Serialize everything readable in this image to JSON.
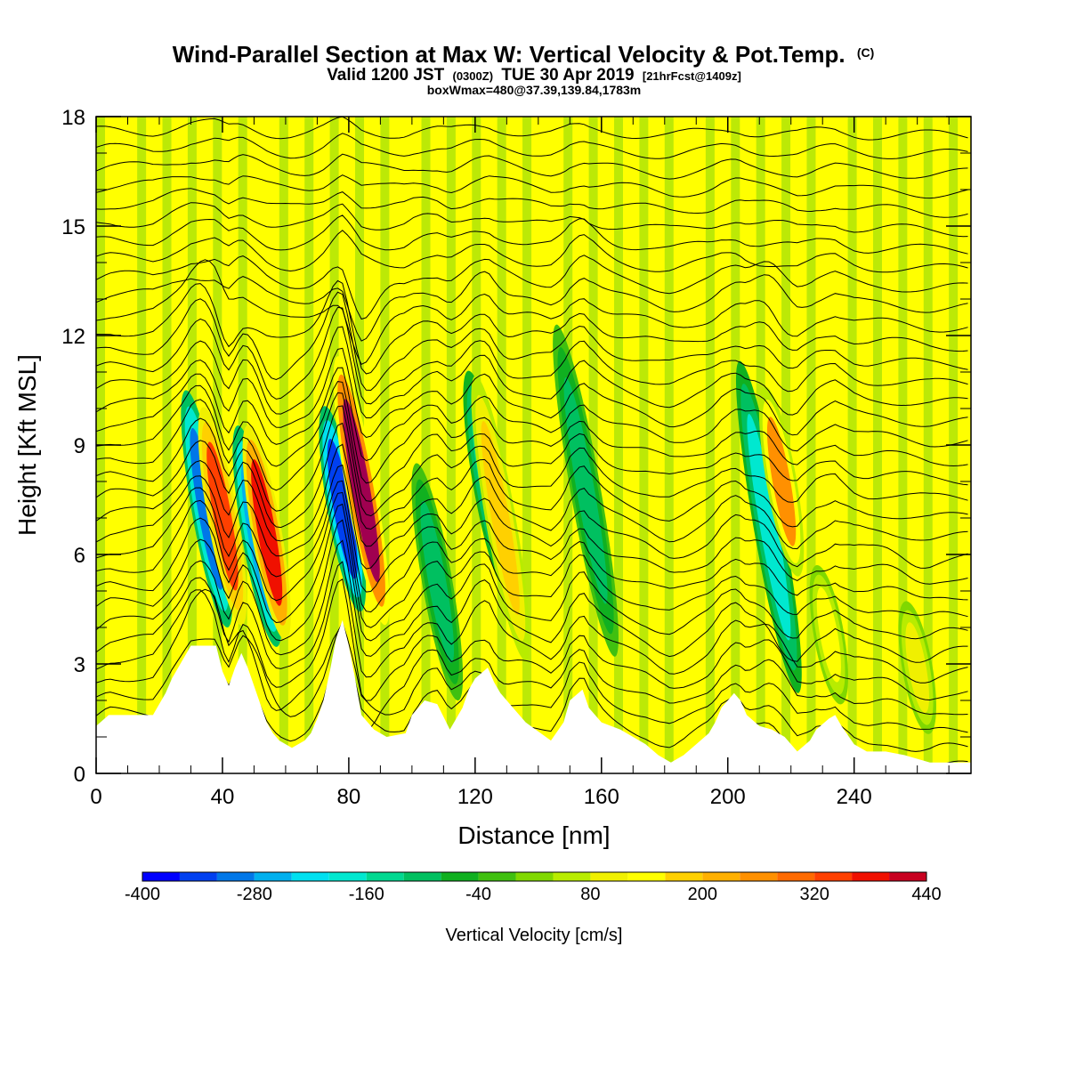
{
  "chart_data": {
    "type": "heatmap",
    "title": "Wind-Parallel Section at Max W: Vertical Velocity & Pot.Temp.",
    "title_suffix": "(C)",
    "subtitle": {
      "part1": "Valid 1200 JST",
      "part2": "(0300Z)",
      "part3": "TUE 30 Apr 2019",
      "part4": "[21hrFcst@1409z]"
    },
    "subtitle2": "boxWmax=480@37.39,139.84,1783m",
    "xlabel": "Distance [nm]",
    "ylabel": "Height [Kft MSL]",
    "xlim": [
      0,
      277
    ],
    "ylim": [
      0,
      18
    ],
    "x_ticks": [
      "0",
      "40",
      "80",
      "120",
      "160",
      "200",
      "240"
    ],
    "y_ticks": [
      "0",
      "3",
      "6",
      "9",
      "12",
      "15",
      "18"
    ],
    "colorbar": {
      "label": "Vertical Velocity [cm/s]",
      "range": [
        -400,
        440
      ],
      "step": 40,
      "tick_labels": [
        "-400",
        "-280",
        "-160",
        "-40",
        "80",
        "200",
        "320",
        "440"
      ],
      "colors": [
        "#0000ff",
        "#0040f0",
        "#0077e8",
        "#00b0ee",
        "#00e0f0",
        "#00e8d0",
        "#00d890",
        "#00c060",
        "#10b020",
        "#40c010",
        "#80d800",
        "#b8ec00",
        "#f0f000",
        "#ffff00",
        "#ffd000",
        "#ffb000",
        "#ff9000",
        "#ff6a00",
        "#ff4000",
        "#f01000",
        "#c80020",
        "#a00050",
        "#780080",
        "#500090",
        "#400090"
      ]
    },
    "terrain_height_kft": [
      [
        0,
        1.3
      ],
      [
        4,
        1.6
      ],
      [
        12,
        1.6
      ],
      [
        18,
        1.6
      ],
      [
        22,
        2.2
      ],
      [
        24,
        2.6
      ],
      [
        28,
        3.2
      ],
      [
        30,
        3.5
      ],
      [
        38,
        3.5
      ],
      [
        40,
        2.8
      ],
      [
        42,
        2.4
      ],
      [
        44,
        2.9
      ],
      [
        46,
        3.3
      ],
      [
        48,
        2.9
      ],
      [
        50,
        2.4
      ],
      [
        52,
        1.9
      ],
      [
        54,
        1.4
      ],
      [
        56,
        1.1
      ],
      [
        58,
        0.9
      ],
      [
        62,
        0.7
      ],
      [
        66,
        0.9
      ],
      [
        68,
        1.1
      ],
      [
        70,
        1.5
      ],
      [
        72,
        2.0
      ],
      [
        74,
        2.8
      ],
      [
        76,
        3.7
      ],
      [
        78,
        4.2
      ],
      [
        80,
        3.5
      ],
      [
        82,
        2.6
      ],
      [
        84,
        1.6
      ],
      [
        86,
        1.4
      ],
      [
        88,
        1.2
      ],
      [
        92,
        1.0
      ],
      [
        98,
        1.1
      ],
      [
        100,
        1.6
      ],
      [
        104,
        2.0
      ],
      [
        108,
        1.9
      ],
      [
        112,
        1.2
      ],
      [
        116,
        1.8
      ],
      [
        118,
        2.3
      ],
      [
        120,
        2.6
      ],
      [
        124,
        2.9
      ],
      [
        126,
        2.5
      ],
      [
        128,
        2.2
      ],
      [
        132,
        1.8
      ],
      [
        136,
        1.4
      ],
      [
        144,
        0.9
      ],
      [
        148,
        1.4
      ],
      [
        150,
        2.0
      ],
      [
        154,
        2.3
      ],
      [
        156,
        1.8
      ],
      [
        160,
        1.4
      ],
      [
        166,
        1.2
      ],
      [
        170,
        1.0
      ],
      [
        174,
        0.8
      ],
      [
        178,
        0.5
      ],
      [
        182,
        0.3
      ],
      [
        186,
        0.5
      ],
      [
        190,
        0.8
      ],
      [
        194,
        1.1
      ],
      [
        196,
        1.4
      ],
      [
        198,
        1.8
      ],
      [
        202,
        2.2
      ],
      [
        204,
        2.0
      ],
      [
        206,
        1.6
      ],
      [
        210,
        1.3
      ],
      [
        214,
        1.2
      ],
      [
        218,
        1.0
      ],
      [
        222,
        0.6
      ],
      [
        226,
        0.9
      ],
      [
        228,
        1.2
      ],
      [
        232,
        1.5
      ],
      [
        234,
        1.6
      ],
      [
        236,
        1.3
      ],
      [
        240,
        0.8
      ],
      [
        244,
        0.6
      ],
      [
        250,
        0.6
      ],
      [
        256,
        0.5
      ],
      [
        260,
        0.4
      ],
      [
        264,
        0.3
      ],
      [
        277,
        0.3
      ]
    ],
    "vertical_velocity_features": [
      {
        "x": 35,
        "y0": 3.5,
        "y1": 11,
        "w": -320
      },
      {
        "x": 40,
        "y0": 3.6,
        "y1": 10.5,
        "w": 320
      },
      {
        "x": 51,
        "y0": 3.0,
        "y1": 10,
        "w": -280
      },
      {
        "x": 54,
        "y0": 3.2,
        "y1": 10,
        "w": 360
      },
      {
        "x": 78,
        "y0": 4.0,
        "y1": 10.5,
        "w": -360
      },
      {
        "x": 84,
        "y0": 3.5,
        "y1": 12,
        "w": 440
      },
      {
        "x": 108,
        "y0": 1.5,
        "y1": 9,
        "w": -120
      },
      {
        "x": 124,
        "y0": 4.5,
        "y1": 11.5,
        "w": -160
      },
      {
        "x": 128,
        "y0": 2.5,
        "y1": 11.5,
        "w": 160
      },
      {
        "x": 155,
        "y0": 2.5,
        "y1": 13,
        "w": -120
      },
      {
        "x": 213,
        "y0": 1.5,
        "y1": 12,
        "w": -200
      },
      {
        "x": 217,
        "y0": 5,
        "y1": 11,
        "w": 240
      },
      {
        "x": 232,
        "y0": 1.6,
        "y1": 6,
        "w": 120
      },
      {
        "x": 260,
        "y0": 0.8,
        "y1": 5,
        "w": 80
      }
    ],
    "theta_contour_heights_kft": [
      1.1,
      1.6,
      2.1,
      2.6,
      3.1,
      3.6,
      4.1,
      4.6,
      5.1,
      5.6,
      6.1,
      6.6,
      7.1,
      7.6,
      8.1,
      8.6,
      9.1,
      9.6,
      10.1,
      10.6,
      11.1,
      11.6,
      12.1,
      12.6,
      13.1,
      13.6,
      14.1,
      14.6,
      15.1,
      15.6,
      16.1,
      16.6,
      17.1,
      17.6
    ],
    "grid": false
  }
}
